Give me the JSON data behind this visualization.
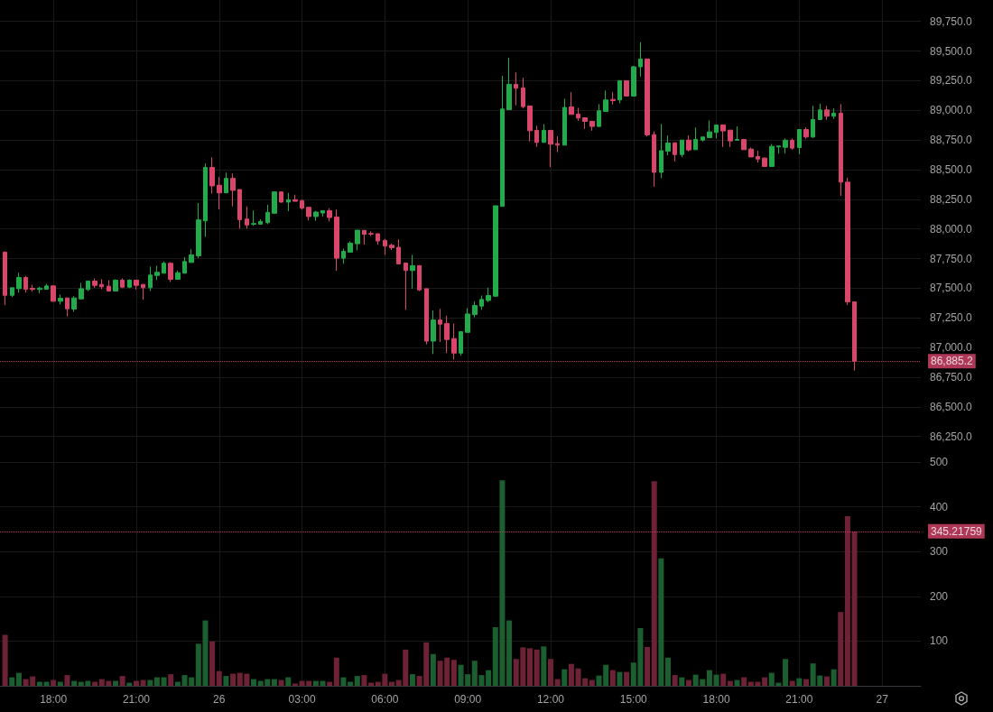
{
  "chart_data": [
    {
      "type": "candlestick",
      "tick_labels": "y",
      "grid": true,
      "x": [
        "--11-25T16:15",
        "--11-25T16:30",
        "--11-25T16:45",
        "--11-25T17:00",
        "--11-25T17:15",
        "--11-25T17:30",
        "--11-25T17:45",
        "--11-25T18:00",
        "--11-25T18:15",
        "--11-25T18:30",
        "--11-25T18:45",
        "--11-25T19:00",
        "--11-25T19:15",
        "--11-25T19:30",
        "--11-25T19:45",
        "--11-25T20:00",
        "--11-25T20:15",
        "--11-25T20:30",
        "--11-25T20:45",
        "--11-25T21:00",
        "--11-25T21:15",
        "--11-25T21:30",
        "--11-25T21:45",
        "--11-25T22:00",
        "--11-25T22:15",
        "--11-25T22:30",
        "--11-25T22:45",
        "--11-25T23:00",
        "--11-25T23:15",
        "--11-25T23:30",
        "--11-25T23:45",
        "--11-26T00:00",
        "--11-26T00:15",
        "--11-26T00:30",
        "--11-26T00:45",
        "--11-26T01:00",
        "--11-26T01:15",
        "--11-26T01:30",
        "--11-26T01:45",
        "--11-26T02:00",
        "--11-26T02:15",
        "--11-26T02:30",
        "--11-26T02:45",
        "--11-26T03:00",
        "--11-26T03:15",
        "--11-26T03:30",
        "--11-26T03:45",
        "--11-26T04:00",
        "--11-26T04:15",
        "--11-26T04:30",
        "--11-26T04:45",
        "--11-26T05:00",
        "--11-26T05:15",
        "--11-26T05:30",
        "--11-26T05:45",
        "--11-26T06:00",
        "--11-26T06:15",
        "--11-26T06:30",
        "--11-26T06:45",
        "--11-26T07:00",
        "--11-26T07:15",
        "--11-26T07:30",
        "--11-26T07:45",
        "--11-26T08:00",
        "--11-26T08:15",
        "--11-26T08:30",
        "--11-26T08:45",
        "--11-26T09:00",
        "--11-26T09:15",
        "--11-26T09:30",
        "--11-26T09:45",
        "--11-26T10:00",
        "--11-26T10:15",
        "--11-26T10:30",
        "--11-26T10:45",
        "--11-26T11:00",
        "--11-26T11:15",
        "--11-26T11:30",
        "--11-26T11:45",
        "--11-26T12:00",
        "--11-26T12:15",
        "--11-26T12:30",
        "--11-26T12:45",
        "--11-26T13:00",
        "--11-26T13:15",
        "--11-26T13:30",
        "--11-26T13:45",
        "--11-26T14:00",
        "--11-26T14:15",
        "--11-26T14:30",
        "--11-26T14:45",
        "--11-26T15:00",
        "--11-26T15:15",
        "--11-26T15:30",
        "--11-26T15:45",
        "--11-26T16:00",
        "--11-26T16:15",
        "--11-26T16:30",
        "--11-26T16:45",
        "--11-26T17:00",
        "--11-26T17:15",
        "--11-26T17:30",
        "--11-26T17:45",
        "--11-26T18:00",
        "--11-26T18:15",
        "--11-26T18:30",
        "--11-26T18:45",
        "--11-26T19:00",
        "--11-26T19:15",
        "--11-26T19:30",
        "--11-26T19:45",
        "--11-26T20:00",
        "--11-26T20:15",
        "--11-26T20:30",
        "--11-26T20:45",
        "--11-26T21:00",
        "--11-26T21:15",
        "--11-26T21:30",
        "--11-26T21:45",
        "--11-26T22:00",
        "--11-26T22:15",
        "--11-26T22:30",
        "--11-26T22:45",
        "--11-26T23:00"
      ],
      "ohlc": [
        [
          87804,
          87810,
          87357,
          87440
        ],
        [
          87440,
          87504,
          87425,
          87504
        ],
        [
          87496,
          87631,
          87463,
          87590
        ],
        [
          87590,
          87603,
          87463,
          87491
        ],
        [
          87499,
          87529,
          87471,
          87489
        ],
        [
          87489,
          87512,
          87456,
          87501
        ],
        [
          87491,
          87537,
          87491,
          87519
        ],
        [
          87519,
          87524,
          87387,
          87390
        ],
        [
          87390,
          87446,
          87364,
          87415
        ],
        [
          87418,
          87418,
          87263,
          87326
        ],
        [
          87324,
          87433,
          87301,
          87418
        ],
        [
          87410,
          87545,
          87410,
          87496
        ],
        [
          87489,
          87565,
          87476,
          87560
        ],
        [
          87560,
          87583,
          87504,
          87524
        ],
        [
          87532,
          87575,
          87491,
          87512
        ],
        [
          87517,
          87568,
          87476,
          87476
        ],
        [
          87476,
          87575,
          87476,
          87568
        ],
        [
          87568,
          87583,
          87501,
          87509
        ],
        [
          87509,
          87575,
          87501,
          87568
        ],
        [
          87568,
          87568,
          87489,
          87524
        ],
        [
          87532,
          87532,
          87402,
          87504
        ],
        [
          87504,
          87682,
          87476,
          87611
        ],
        [
          87608,
          87690,
          87570,
          87634
        ],
        [
          87626,
          87725,
          87626,
          87710
        ],
        [
          87710,
          87720,
          87552,
          87575
        ],
        [
          87575,
          87649,
          87575,
          87631
        ],
        [
          87626,
          87761,
          87626,
          87725
        ],
        [
          87717,
          87827,
          87717,
          87781
        ],
        [
          87773,
          88218,
          87753,
          88076
        ],
        [
          88068,
          88553,
          87933,
          88518
        ],
        [
          88518,
          88604,
          88299,
          88363
        ],
        [
          88368,
          88437,
          88165,
          88304
        ],
        [
          88304,
          88475,
          88304,
          88426
        ],
        [
          88426,
          88467,
          88190,
          88325
        ],
        [
          88332,
          88332,
          88002,
          88078
        ],
        [
          88083,
          88190,
          88002,
          88033
        ],
        [
          88040,
          88155,
          88027,
          88045
        ],
        [
          88040,
          88081,
          88040,
          88063
        ],
        [
          88053,
          88203,
          88040,
          88139
        ],
        [
          88132,
          88312,
          88132,
          88312
        ],
        [
          88312,
          88317,
          88221,
          88226
        ],
        [
          88226,
          88304,
          88149,
          88246
        ],
        [
          88246,
          88289,
          88233,
          88233
        ],
        [
          88238,
          88246,
          88162,
          88175
        ],
        [
          88182,
          88182,
          88071,
          88104
        ],
        [
          88104,
          88152,
          88068,
          88142
        ],
        [
          88134,
          88154,
          88104,
          88154
        ],
        [
          88154,
          88175,
          88063,
          88096
        ],
        [
          88101,
          88162,
          87646,
          87753
        ],
        [
          87753,
          87834,
          87705,
          87811
        ],
        [
          87804,
          87895,
          87804,
          87880
        ],
        [
          87875,
          87989,
          87819,
          87989
        ],
        [
          87987,
          87992,
          87867,
          87954
        ],
        [
          87961,
          87979,
          87941,
          87956
        ],
        [
          87959,
          87961,
          87867,
          87898
        ],
        [
          87903,
          87916,
          87781,
          87855
        ],
        [
          87862,
          87877,
          87822,
          87842
        ],
        [
          87845,
          87911,
          87705,
          87705
        ],
        [
          87712,
          87712,
          87318,
          87649
        ],
        [
          87649,
          87781,
          87496,
          87690
        ],
        [
          87690,
          87695,
          87476,
          87486
        ],
        [
          87496,
          87496,
          87026,
          87054
        ],
        [
          87054,
          87313,
          86945,
          87232
        ],
        [
          87232,
          87326,
          87047,
          87197
        ],
        [
          87202,
          87268,
          86953,
          87067
        ],
        [
          87075,
          87202,
          86899,
          86953
        ],
        [
          86953,
          87133,
          86932,
          87133
        ],
        [
          87128,
          87331,
          87128,
          87283
        ],
        [
          87278,
          87390,
          87255,
          87354
        ],
        [
          87349,
          87438,
          87318,
          87405
        ],
        [
          87397,
          87504,
          87382,
          87438
        ],
        [
          87433,
          88195,
          87428,
          88195
        ],
        [
          88190,
          89291,
          88190,
          89011
        ],
        [
          89006,
          89443,
          89006,
          89219
        ],
        [
          89219,
          89319,
          89042,
          89186
        ],
        [
          89189,
          89275,
          89016,
          89031
        ],
        [
          89036,
          89036,
          88737,
          88828
        ],
        [
          88831,
          88869,
          88691,
          88729
        ],
        [
          88729,
          88884,
          88729,
          88831
        ],
        [
          88831,
          88831,
          88521,
          88714
        ],
        [
          88719,
          88782,
          88648,
          88706
        ],
        [
          88706,
          89098,
          88706,
          89024
        ],
        [
          89029,
          89153,
          88965,
          88965
        ],
        [
          88968,
          89021,
          88912,
          88935
        ],
        [
          88937,
          88937,
          88843,
          88907
        ],
        [
          88907,
          88907,
          88828,
          88864
        ],
        [
          88864,
          89052,
          88859,
          88996
        ],
        [
          88991,
          89166,
          88991,
          89087
        ],
        [
          89092,
          89153,
          89049,
          89082
        ],
        [
          89087,
          89250,
          89059,
          89250
        ],
        [
          89250,
          89250,
          89120,
          89120
        ],
        [
          89120,
          89374,
          89120,
          89367
        ],
        [
          89367,
          89575,
          89285,
          89433
        ],
        [
          89433,
          89433,
          88780,
          88793
        ],
        [
          88795,
          88823,
          88356,
          88477
        ],
        [
          88477,
          88884,
          88427,
          88660
        ],
        [
          88655,
          88788,
          88620,
          88724
        ],
        [
          88726,
          88726,
          88569,
          88627
        ],
        [
          88627,
          88749,
          88605,
          88749
        ],
        [
          88749,
          88788,
          88653,
          88666
        ],
        [
          88668,
          88856,
          88668,
          88754
        ],
        [
          88749,
          88775,
          88737,
          88775
        ],
        [
          88770,
          88915,
          88770,
          88818
        ],
        [
          88813,
          88876,
          88762,
          88876
        ],
        [
          88876,
          88876,
          88691,
          88826
        ],
        [
          88833,
          88833,
          88691,
          88742
        ],
        [
          88747,
          88864,
          88747,
          88754
        ],
        [
          88754,
          88754,
          88668,
          88668
        ],
        [
          88673,
          88686,
          88607,
          88607
        ],
        [
          88610,
          88660,
          88559,
          88589
        ],
        [
          88597,
          88602,
          88526,
          88526
        ],
        [
          88526,
          88716,
          88526,
          88696
        ],
        [
          88691,
          88699,
          88635,
          88699
        ],
        [
          88688,
          88762,
          88635,
          88747
        ],
        [
          88747,
          88762,
          88668,
          88681
        ],
        [
          88686,
          88838,
          88630,
          88838
        ],
        [
          88838,
          88856,
          88760,
          88775
        ],
        [
          88775,
          89037,
          88767,
          88922
        ],
        [
          88922,
          89054,
          88922,
          89003
        ],
        [
          89003,
          89037,
          88920,
          88950
        ],
        [
          88950,
          89016,
          88927,
          88976
        ],
        [
          88976,
          89052,
          88279,
          88394
        ],
        [
          88394,
          88432,
          87359,
          87385
        ],
        [
          87385,
          87385,
          86805,
          86885.2
        ]
      ],
      "colors": [
        "#d9466b",
        "#22ab4a",
        "#22ab4a",
        "#d9466b",
        "#d9466b",
        "#22ab4a",
        "#22ab4a",
        "#d9466b",
        "#22ab4a",
        "#d9466b",
        "#22ab4a",
        "#22ab4a",
        "#22ab4a",
        "#d9466b",
        "#d9466b",
        "#d9466b",
        "#22ab4a",
        "#d9466b",
        "#22ab4a",
        "#d9466b",
        "#d9466b",
        "#22ab4a",
        "#22ab4a",
        "#22ab4a",
        "#d9466b",
        "#22ab4a",
        "#22ab4a",
        "#22ab4a",
        "#22ab4a",
        "#22ab4a",
        "#d9466b",
        "#d9466b",
        "#22ab4a",
        "#d9466b",
        "#d9466b",
        "#d9466b",
        "#22ab4a",
        "#22ab4a",
        "#22ab4a",
        "#22ab4a",
        "#d9466b",
        "#22ab4a",
        "#d9466b",
        "#d9466b",
        "#d9466b",
        "#22ab4a",
        "#22ab4a",
        "#d9466b",
        "#d9466b",
        "#22ab4a",
        "#22ab4a",
        "#22ab4a",
        "#d9466b",
        "#d9466b",
        "#d9466b",
        "#d9466b",
        "#d9466b",
        "#d9466b",
        "#d9466b",
        "#22ab4a",
        "#d9466b",
        "#d9466b",
        "#22ab4a",
        "#d9466b",
        "#d9466b",
        "#d9466b",
        "#22ab4a",
        "#22ab4a",
        "#22ab4a",
        "#22ab4a",
        "#22ab4a",
        "#22ab4a",
        "#22ab4a",
        "#22ab4a",
        "#d9466b",
        "#d9466b",
        "#d9466b",
        "#d9466b",
        "#22ab4a",
        "#d9466b",
        "#d9466b",
        "#22ab4a",
        "#d9466b",
        "#d9466b",
        "#d9466b",
        "#d9466b",
        "#22ab4a",
        "#22ab4a",
        "#d9466b",
        "#22ab4a",
        "#d9466b",
        "#22ab4a",
        "#22ab4a",
        "#d9466b",
        "#d9466b",
        "#22ab4a",
        "#22ab4a",
        "#d9466b",
        "#22ab4a",
        "#d9466b",
        "#22ab4a",
        "#22ab4a",
        "#22ab4a",
        "#22ab4a",
        "#d9466b",
        "#d9466b",
        "#22ab4a",
        "#d9466b",
        "#d9466b",
        "#d9466b",
        "#d9466b",
        "#22ab4a",
        "#22ab4a",
        "#22ab4a",
        "#d9466b",
        "#22ab4a",
        "#d9466b",
        "#22ab4a",
        "#22ab4a",
        "#d9466b",
        "#22ab4a",
        "#d9466b",
        "#d9466b",
        "#d9466b"
      ],
      "xlim": [
        "--11-25T16:04",
        "--11-27T01:24"
      ],
      "xticks": [
        {
          "value": "--11-25T18:00",
          "label": "18:00"
        },
        {
          "value": "--11-25T21:00",
          "label": "21:00"
        },
        {
          "value": "--11-26T00:00",
          "label": "26"
        },
        {
          "value": "--11-26T03:00",
          "label": "03:00"
        },
        {
          "value": "--11-26T06:00",
          "label": "06:00"
        },
        {
          "value": "--11-26T09:00",
          "label": "09:00"
        },
        {
          "value": "--11-26T12:00",
          "label": "12:00"
        },
        {
          "value": "--11-26T15:00",
          "label": "15:00"
        },
        {
          "value": "--11-26T18:00",
          "label": "18:00"
        },
        {
          "value": "--11-26T21:00",
          "label": "21:00"
        },
        {
          "value": "--11-27T00:00",
          "label": "27"
        }
      ],
      "ylim": [
        86080,
        89930
      ],
      "yticks": [
        {
          "value": 86250,
          "label": "86,250.0"
        },
        {
          "value": 86500,
          "label": "86,500.0"
        },
        {
          "value": 86750,
          "label": "86,750.0"
        },
        {
          "value": 87000,
          "label": "87,000.0"
        },
        {
          "value": 87250,
          "label": "87,250.0"
        },
        {
          "value": 87500,
          "label": "87,500.0"
        },
        {
          "value": 87750,
          "label": "87,750.0"
        },
        {
          "value": 88000,
          "label": "88,000.0"
        },
        {
          "value": 88250,
          "label": "88,250.0"
        },
        {
          "value": 88500,
          "label": "88,500.0"
        },
        {
          "value": 88750,
          "label": "88,750.0"
        },
        {
          "value": 89000,
          "label": "89,000.0"
        },
        {
          "value": 89250,
          "label": "89,250.0"
        },
        {
          "value": 89500,
          "label": "89,500.0"
        },
        {
          "value": 89750,
          "label": "89,750.0"
        }
      ],
      "ref_lines": [
        {
          "axis": "y",
          "value": 86885.2,
          "label": "86,885.2",
          "color": "#d9466b",
          "line_style": "dotted"
        }
      ]
    },
    {
      "type": "bar",
      "grid": true,
      "x": [
        "--11-25T16:15",
        "--11-25T16:30",
        "--11-25T16:45",
        "--11-25T17:00",
        "--11-25T17:15",
        "--11-25T17:30",
        "--11-25T17:45",
        "--11-25T18:00",
        "--11-25T18:15",
        "--11-25T18:30",
        "--11-25T18:45",
        "--11-25T19:00",
        "--11-25T19:15",
        "--11-25T19:30",
        "--11-25T19:45",
        "--11-25T20:00",
        "--11-25T20:15",
        "--11-25T20:30",
        "--11-25T20:45",
        "--11-25T21:00",
        "--11-25T21:15",
        "--11-25T21:30",
        "--11-25T21:45",
        "--11-25T22:00",
        "--11-25T22:15",
        "--11-25T22:30",
        "--11-25T22:45",
        "--11-25T23:00",
        "--11-25T23:15",
        "--11-25T23:30",
        "--11-25T23:45",
        "--11-26T00:00",
        "--11-26T00:15",
        "--11-26T00:30",
        "--11-26T00:45",
        "--11-26T01:00",
        "--11-26T01:15",
        "--11-26T01:30",
        "--11-26T01:45",
        "--11-26T02:00",
        "--11-26T02:15",
        "--11-26T02:30",
        "--11-26T02:45",
        "--11-26T03:00",
        "--11-26T03:15",
        "--11-26T03:30",
        "--11-26T03:45",
        "--11-26T04:00",
        "--11-26T04:15",
        "--11-26T04:30",
        "--11-26T04:45",
        "--11-26T05:00",
        "--11-26T05:15",
        "--11-26T05:30",
        "--11-26T05:45",
        "--11-26T06:00",
        "--11-26T06:15",
        "--11-26T06:30",
        "--11-26T06:45",
        "--11-26T07:00",
        "--11-26T07:15",
        "--11-26T07:30",
        "--11-26T07:45",
        "--11-26T08:00",
        "--11-26T08:15",
        "--11-26T08:30",
        "--11-26T08:45",
        "--11-26T09:00",
        "--11-26T09:15",
        "--11-26T09:30",
        "--11-26T09:45",
        "--11-26T10:00",
        "--11-26T10:15",
        "--11-26T10:30",
        "--11-26T10:45",
        "--11-26T11:00",
        "--11-26T11:15",
        "--11-26T11:30",
        "--11-26T11:45",
        "--11-26T12:00",
        "--11-26T12:15",
        "--11-26T12:30",
        "--11-26T12:45",
        "--11-26T13:00",
        "--11-26T13:15",
        "--11-26T13:30",
        "--11-26T13:45",
        "--11-26T14:00",
        "--11-26T14:15",
        "--11-26T14:30",
        "--11-26T14:45",
        "--11-26T15:00",
        "--11-26T15:15",
        "--11-26T15:30",
        "--11-26T15:45",
        "--11-26T16:00",
        "--11-26T16:15",
        "--11-26T16:30",
        "--11-26T16:45",
        "--11-26T17:00",
        "--11-26T17:15",
        "--11-26T17:30",
        "--11-26T17:45",
        "--11-26T18:00",
        "--11-26T18:15",
        "--11-26T18:30",
        "--11-26T18:45",
        "--11-26T19:00",
        "--11-26T19:15",
        "--11-26T19:30",
        "--11-26T19:45",
        "--11-26T20:00",
        "--11-26T20:15",
        "--11-26T20:30",
        "--11-26T20:45",
        "--11-26T21:00",
        "--11-26T21:15",
        "--11-26T21:30",
        "--11-26T21:45",
        "--11-26T22:00",
        "--11-26T22:15",
        "--11-26T22:30",
        "--11-26T22:45",
        "--11-26T23:00"
      ],
      "values": [
        114,
        19,
        29,
        15,
        21,
        9,
        9,
        13,
        9,
        24,
        11,
        9,
        11,
        9,
        15,
        11,
        11,
        22,
        7,
        11,
        13,
        13,
        19,
        19,
        26,
        9,
        24,
        19,
        94,
        146,
        99,
        33,
        22,
        27,
        29,
        27,
        15,
        11,
        15,
        15,
        13,
        19,
        5,
        11,
        11,
        11,
        11,
        9,
        63,
        19,
        9,
        22,
        24,
        7,
        9,
        27,
        9,
        13,
        81,
        26,
        22,
        97,
        71,
        56,
        63,
        58,
        47,
        26,
        56,
        24,
        35,
        131,
        459,
        146,
        60,
        86,
        84,
        81,
        88,
        60,
        15,
        37,
        49,
        39,
        17,
        13,
        23,
        47,
        35,
        31,
        31,
        52,
        129,
        87,
        457,
        285,
        63,
        24,
        19,
        13,
        25,
        15,
        35,
        25,
        27,
        11,
        13,
        19,
        9,
        9,
        19,
        29,
        7,
        60,
        11,
        17,
        15,
        50,
        23,
        21,
        37,
        165,
        379,
        345
      ],
      "colors": [
        "#6e2236",
        "#1b5e30",
        "#1b5e30",
        "#6e2236",
        "#6e2236",
        "#1b5e30",
        "#1b5e30",
        "#6e2236",
        "#1b5e30",
        "#6e2236",
        "#1b5e30",
        "#1b5e30",
        "#1b5e30",
        "#6e2236",
        "#6e2236",
        "#6e2236",
        "#1b5e30",
        "#6e2236",
        "#1b5e30",
        "#6e2236",
        "#6e2236",
        "#1b5e30",
        "#1b5e30",
        "#1b5e30",
        "#6e2236",
        "#1b5e30",
        "#1b5e30",
        "#1b5e30",
        "#1b5e30",
        "#1b5e30",
        "#6e2236",
        "#6e2236",
        "#1b5e30",
        "#6e2236",
        "#6e2236",
        "#6e2236",
        "#1b5e30",
        "#1b5e30",
        "#1b5e30",
        "#1b5e30",
        "#6e2236",
        "#1b5e30",
        "#6e2236",
        "#6e2236",
        "#6e2236",
        "#1b5e30",
        "#1b5e30",
        "#6e2236",
        "#6e2236",
        "#1b5e30",
        "#1b5e30",
        "#1b5e30",
        "#6e2236",
        "#6e2236",
        "#6e2236",
        "#6e2236",
        "#6e2236",
        "#6e2236",
        "#6e2236",
        "#1b5e30",
        "#6e2236",
        "#6e2236",
        "#1b5e30",
        "#6e2236",
        "#6e2236",
        "#6e2236",
        "#1b5e30",
        "#1b5e30",
        "#1b5e30",
        "#1b5e30",
        "#1b5e30",
        "#1b5e30",
        "#1b5e30",
        "#1b5e30",
        "#6e2236",
        "#6e2236",
        "#6e2236",
        "#6e2236",
        "#1b5e30",
        "#6e2236",
        "#6e2236",
        "#1b5e30",
        "#6e2236",
        "#6e2236",
        "#6e2236",
        "#6e2236",
        "#1b5e30",
        "#1b5e30",
        "#6e2236",
        "#1b5e30",
        "#6e2236",
        "#1b5e30",
        "#1b5e30",
        "#6e2236",
        "#6e2236",
        "#1b5e30",
        "#1b5e30",
        "#6e2236",
        "#1b5e30",
        "#6e2236",
        "#1b5e30",
        "#1b5e30",
        "#1b5e30",
        "#1b5e30",
        "#6e2236",
        "#6e2236",
        "#1b5e30",
        "#6e2236",
        "#6e2236",
        "#6e2236",
        "#6e2236",
        "#1b5e30",
        "#1b5e30",
        "#1b5e30",
        "#6e2236",
        "#1b5e30",
        "#6e2236",
        "#1b5e30",
        "#1b5e30",
        "#6e2236",
        "#1b5e30",
        "#6e2236",
        "#6e2236",
        "#6e2236"
      ],
      "xlim": [
        "--11-25T16:04",
        "--11-27T01:24"
      ],
      "xticks": [
        {
          "value": "--11-25T18:00",
          "label": "18:00"
        },
        {
          "value": "--11-25T21:00",
          "label": "21:00"
        },
        {
          "value": "--11-26T00:00",
          "label": "26"
        },
        {
          "value": "--11-26T03:00",
          "label": "03:00"
        },
        {
          "value": "--11-26T06:00",
          "label": "06:00"
        },
        {
          "value": "--11-26T09:00",
          "label": "09:00"
        },
        {
          "value": "--11-26T12:00",
          "label": "12:00"
        },
        {
          "value": "--11-26T15:00",
          "label": "15:00"
        },
        {
          "value": "--11-26T18:00",
          "label": "18:00"
        },
        {
          "value": "--11-26T21:00",
          "label": "21:00"
        },
        {
          "value": "--11-27T00:00",
          "label": "27"
        }
      ],
      "ylim": [
        0,
        512
      ],
      "yticks": [
        100,
        200,
        300,
        400,
        500
      ],
      "ref_lines": [
        {
          "axis": "y",
          "value": 345.21759,
          "label": "345.21759",
          "color": "#d9466b",
          "line_style": "dotted"
        }
      ]
    }
  ]
}
